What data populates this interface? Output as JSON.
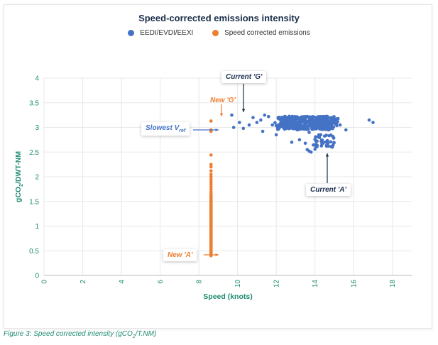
{
  "colors": {
    "blue": "#4472c4",
    "orange": "#ed7d31",
    "axis_text": "#1f8a70",
    "title": "#1a2e4a",
    "grid": "#e8e8e8"
  },
  "caption": {
    "prefix": "Figure 3: Speed corrected intensity (gCO",
    "sub": "2",
    "suffix": "/T.NM)"
  },
  "annotations": {
    "current_g": "Current 'G'",
    "new_g": "New 'G'",
    "slowest_prefix": "Slowest V",
    "slowest_sub": "ref",
    "current_a": "Current 'A'",
    "new_a": "New 'A'"
  },
  "chart_data": {
    "type": "scatter",
    "title": "Speed-corrected emissions intensity",
    "xlabel": "Speed (knots)",
    "ylabel_prefix": "gCO",
    "ylabel_sub": "2",
    "ylabel_suffix": "/DWT-NM",
    "xlim": [
      0,
      19
    ],
    "ylim": [
      0,
      4
    ],
    "xticks": [
      0,
      2,
      4,
      6,
      8,
      10,
      12,
      14,
      16,
      18
    ],
    "xtick_labels": [
      "0",
      "2",
      "4",
      "6",
      "8",
      "10",
      "12",
      "14",
      "16",
      "18"
    ],
    "yticks": [
      0,
      0.5,
      1,
      1.5,
      2,
      2.5,
      3,
      3.5,
      4
    ],
    "ytick_labels": [
      "0",
      "0.5",
      "1",
      "1.5",
      "2",
      "2.5",
      "3",
      "3.5",
      "4"
    ],
    "grid": true,
    "legend_position": "top-center",
    "series": [
      {
        "name": "EEDI/EVDI/EEXI",
        "color": "#4472c4",
        "points": [
          [
            9.7,
            3.25
          ],
          [
            9.8,
            3.0
          ],
          [
            10.1,
            3.1
          ],
          [
            10.3,
            2.98
          ],
          [
            10.6,
            3.05
          ],
          [
            10.8,
            3.2
          ],
          [
            11.0,
            3.1
          ],
          [
            11.2,
            3.15
          ],
          [
            11.3,
            2.92
          ],
          [
            11.4,
            3.25
          ],
          [
            11.6,
            3.22
          ],
          [
            11.8,
            3.05
          ],
          [
            12.0,
            2.85
          ],
          [
            12.1,
            3.2
          ],
          [
            12.3,
            3.1
          ],
          [
            12.5,
            3.15
          ],
          [
            12.7,
            3.0
          ],
          [
            12.9,
            3.2
          ],
          [
            13.1,
            2.95
          ],
          [
            13.3,
            3.1
          ],
          [
            13.5,
            3.2
          ],
          [
            13.7,
            2.9
          ],
          [
            13.9,
            3.05
          ],
          [
            14.1,
            3.15
          ],
          [
            14.3,
            2.85
          ],
          [
            14.5,
            3.2
          ],
          [
            14.7,
            2.95
          ],
          [
            14.9,
            3.1
          ],
          [
            15.1,
            3.15
          ],
          [
            15.3,
            3.05
          ],
          [
            15.6,
            2.95
          ],
          [
            16.8,
            3.15
          ],
          [
            17.0,
            3.1
          ],
          [
            13.6,
            2.55
          ],
          [
            13.7,
            2.52
          ],
          [
            13.8,
            2.5
          ],
          [
            14.0,
            2.56
          ],
          [
            14.6,
            2.62
          ],
          [
            14.9,
            2.6
          ],
          [
            12.8,
            2.7
          ],
          [
            13.2,
            2.75
          ],
          [
            13.5,
            2.68
          ]
        ],
        "cluster": {
          "x_range": [
            11.8,
            15.3
          ],
          "y_range": [
            2.8,
            3.25
          ],
          "count": 420
        }
      },
      {
        "name": "Speed corrected emissions",
        "color": "#ed7d31",
        "points": [
          [
            8.63,
            3.13
          ],
          [
            8.63,
            2.95
          ],
          [
            8.63,
            2.92
          ],
          [
            8.63,
            2.44
          ],
          [
            8.63,
            2.25
          ],
          [
            8.63,
            2.2
          ],
          [
            8.63,
            2.12
          ],
          [
            8.63,
            2.05
          ],
          [
            8.63,
            2.0
          ],
          [
            8.63,
            1.95
          ],
          [
            8.63,
            1.9
          ],
          [
            8.63,
            1.85
          ],
          [
            8.63,
            1.8
          ],
          [
            8.63,
            1.75
          ],
          [
            8.63,
            1.7
          ],
          [
            8.63,
            1.66
          ],
          [
            8.63,
            0.42
          ],
          [
            8.63,
            0.4
          ]
        ],
        "column": {
          "x": 8.63,
          "y_range": [
            0.45,
            1.62
          ],
          "count": 60
        }
      }
    ]
  }
}
